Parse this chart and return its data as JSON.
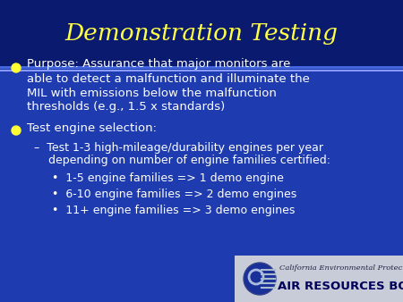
{
  "title": "Demonstration Testing",
  "title_color": "#FFFF44",
  "title_fontsize": 19,
  "slide_bg": "#1a3099",
  "header_bg": "#0a1a6e",
  "body_bg": "#1e3cb0",
  "divider_color_dark": "#4466dd",
  "divider_color_light": "#8899ff",
  "body_text_color": "#ffffff",
  "bullet_color": "#ffff33",
  "bullet1_line1": "Purpose: Assurance that major monitors are",
  "bullet1_line2": "able to detect a malfunction and illuminate the",
  "bullet1_line3": "MIL with emissions below the malfunction",
  "bullet1_line4": "thresholds (e.g., 1.5 x standards)",
  "bullet2": "Test engine selection:",
  "sub_line1": "–  Test 1-3 high-mileage/durability engines per year",
  "sub_line2": "    depending on number of engine families certified:",
  "sub_sub_bullets": [
    "•  1-5 engine families => 1 demo engine",
    "•  6-10 engine families => 2 demo engines",
    "•  11+ engine families => 3 demo engines"
  ],
  "footer_text1": "California Environmental Protection Agency",
  "footer_text2": "AIR RESOURCES BOARD",
  "text_fontsize": 9.5,
  "sub_fontsize": 9.0,
  "footer_fontsize1": 6.0,
  "footer_fontsize2": 9.5
}
